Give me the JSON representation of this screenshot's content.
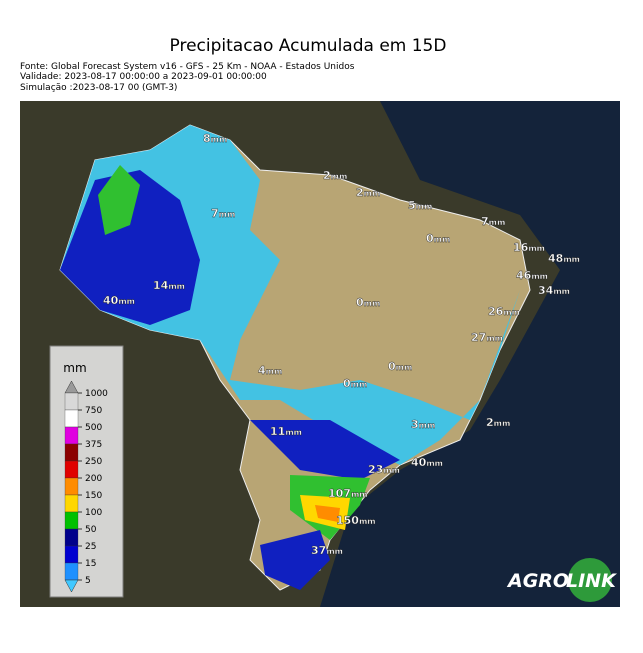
{
  "header": {
    "title": "Precipitacao Acumulada em 15D",
    "lines": [
      "Fonte: Global Forecast System v16 - GFS - 25 Km - NOAA - Estados Unidos",
      "Validade: 2023-08-17 00:00:00 a 2023-09-01 00:00:00",
      "Simulação :2023-08-17 00 (GMT-3)"
    ]
  },
  "map_labels": [
    {
      "value": 8,
      "unit": "mm"
    },
    {
      "value": 2,
      "unit": "mm"
    },
    {
      "value": 2,
      "unit": "mm"
    },
    {
      "value": 5,
      "unit": "mm"
    },
    {
      "value": 7,
      "unit": "mm"
    },
    {
      "value": 7,
      "unit": "mm"
    },
    {
      "value": 0,
      "unit": "mm"
    },
    {
      "value": 16,
      "unit": "mm"
    },
    {
      "value": 48,
      "unit": "mm"
    },
    {
      "value": 46,
      "unit": "mm"
    },
    {
      "value": 34,
      "unit": "mm"
    },
    {
      "value": 14,
      "unit": "mm"
    },
    {
      "value": 40,
      "unit": "mm"
    },
    {
      "value": 0,
      "unit": "mm"
    },
    {
      "value": 26,
      "unit": "mm"
    },
    {
      "value": 27,
      "unit": "mm"
    },
    {
      "value": 4,
      "unit": "mm"
    },
    {
      "value": 0,
      "unit": "mm"
    },
    {
      "value": 0,
      "unit": "mm"
    },
    {
      "value": 3,
      "unit": "mm"
    },
    {
      "value": 2,
      "unit": "mm"
    },
    {
      "value": 11,
      "unit": "mm"
    },
    {
      "value": 23,
      "unit": "mm"
    },
    {
      "value": 40,
      "unit": "mm"
    },
    {
      "value": 107,
      "unit": "mm"
    },
    {
      "value": 150,
      "unit": "mm"
    },
    {
      "value": 37,
      "unit": "mm"
    }
  ],
  "legend": {
    "title": "mm",
    "ticks": [
      1000,
      750,
      500,
      375,
      250,
      200,
      150,
      100,
      50,
      25,
      15,
      5
    ],
    "colors": [
      "#9a9a9a",
      "#d8d8d8",
      "#ffffff",
      "#e000e0",
      "#8b0000",
      "#e00000",
      "#ff8c00",
      "#ffd700",
      "#00c000",
      "#00008b",
      "#0000d0",
      "#1e90ff",
      "#40c8ff"
    ]
  },
  "logo": {
    "part1": "AGRO",
    "part2": "LINK"
  }
}
